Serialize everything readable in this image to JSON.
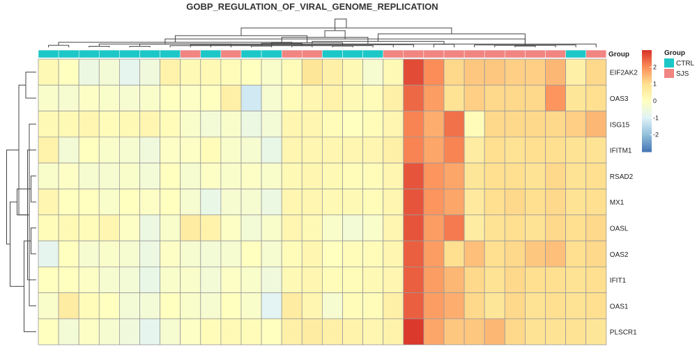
{
  "chart_data": {
    "type": "heatmap",
    "title": "GOBP_REGULATION_OF_VIRAL_GENOME_REPLICATION",
    "annotation_label": "Group",
    "rows": [
      "EIF2AK2",
      "OAS3",
      "ISG15",
      "IFITM1",
      "RSAD2",
      "MX1",
      "OASL",
      "OAS2",
      "IFIT1",
      "OAS1",
      "PLSCR1"
    ],
    "groups": [
      "CTRL",
      "CTRL",
      "CTRL",
      "CTRL",
      "CTRL",
      "CTRL",
      "CTRL",
      "SJS",
      "CTRL",
      "SJS",
      "CTRL",
      "CTRL",
      "SJS",
      "SJS",
      "CTRL",
      "CTRL",
      "CTRL",
      "SJS",
      "SJS",
      "SJS",
      "SJS",
      "SJS",
      "SJS",
      "SJS",
      "SJS",
      "SJS",
      "CTRL",
      "SJS"
    ],
    "values": [
      [
        0.2,
        0.0,
        -0.6,
        -0.4,
        -0.8,
        -0.5,
        0.4,
        0.2,
        0.2,
        0.1,
        0.0,
        -0.2,
        0.1,
        0.8,
        0.5,
        0.2,
        -0.3,
        0.2,
        2.7,
        2.0,
        1.1,
        1.3,
        1.3,
        1.2,
        1.2,
        1.5,
        0.5,
        1.1
      ],
      [
        -0.2,
        -0.3,
        -0.1,
        -0.2,
        -0.3,
        -0.2,
        0.0,
        -0.1,
        0.0,
        0.5,
        -1.2,
        -0.3,
        0.1,
        0.3,
        0.4,
        0.2,
        0.1,
        0.5,
        2.4,
        1.8,
        0.9,
        1.2,
        1.1,
        1.1,
        1.1,
        1.9,
        0.8,
        1.0
      ],
      [
        0.2,
        0.2,
        0.3,
        0.1,
        0.2,
        0.3,
        0.1,
        -0.2,
        -0.4,
        -0.2,
        -0.6,
        -0.4,
        0.3,
        0.3,
        0.1,
        0.0,
        0.1,
        0.3,
        2.1,
        1.6,
        2.3,
        0.1,
        1.1,
        1.1,
        1.1,
        1.1,
        1.2,
        1.5
      ],
      [
        0.4,
        -0.4,
        0.0,
        -0.2,
        -0.3,
        -0.5,
        -0.1,
        -0.1,
        0.1,
        -0.2,
        -0.3,
        -0.7,
        0.3,
        0.3,
        0.3,
        0.3,
        0.3,
        0.5,
        2.1,
        1.7,
        2.1,
        0.6,
        1.0,
        0.9,
        1.0,
        1.0,
        0.9,
        0.9
      ],
      [
        -0.2,
        -0.1,
        -0.3,
        -0.3,
        -0.2,
        -0.4,
        0.0,
        -0.3,
        -0.1,
        -0.2,
        -0.1,
        -0.2,
        0.2,
        0.3,
        0.2,
        0.1,
        0.1,
        0.3,
        2.6,
        1.9,
        1.7,
        0.8,
        1.0,
        1.0,
        0.9,
        1.1,
        0.9,
        1.0
      ],
      [
        0.3,
        0.0,
        0.0,
        -0.2,
        0.0,
        -0.1,
        0.0,
        -0.3,
        -0.7,
        -0.3,
        -0.3,
        -0.6,
        0.3,
        0.3,
        0.2,
        0.2,
        0.1,
        0.3,
        2.6,
        1.9,
        1.7,
        0.7,
        1.0,
        1.1,
        1.0,
        1.1,
        0.9,
        1.0
      ],
      [
        0.1,
        0.2,
        0.1,
        0.3,
        -0.1,
        -0.6,
        -0.2,
        0.6,
        0.4,
        -0.1,
        -0.4,
        -0.2,
        0.3,
        0.2,
        -0.2,
        -0.4,
        -0.2,
        0.3,
        2.6,
        1.8,
        2.2,
        0.6,
        0.9,
        1.0,
        0.9,
        1.1,
        1.0,
        1.1
      ],
      [
        -0.8,
        0.0,
        -0.3,
        -0.2,
        -0.3,
        -0.6,
        -0.1,
        -0.3,
        -0.4,
        -0.3,
        0.0,
        -0.3,
        0.1,
        0.3,
        0.0,
        0.1,
        0.1,
        0.3,
        2.5,
        1.8,
        1.0,
        1.4,
        1.0,
        1.1,
        1.3,
        1.4,
        1.0,
        1.1
      ],
      [
        0.0,
        0.0,
        -0.1,
        -0.3,
        -0.4,
        -0.7,
        -0.2,
        -0.2,
        -0.4,
        -0.1,
        -0.2,
        -0.5,
        0.2,
        0.3,
        0.1,
        0.1,
        0.2,
        0.3,
        2.5,
        1.8,
        1.5,
        1.1,
        0.9,
        1.1,
        1.0,
        1.0,
        0.9,
        1.0
      ],
      [
        -0.2,
        0.6,
        0.1,
        0.0,
        -0.4,
        -0.4,
        0.0,
        -0.2,
        -0.3,
        0.0,
        -0.2,
        -0.9,
        0.6,
        0.3,
        -0.3,
        0.1,
        0.1,
        0.5,
        2.5,
        1.8,
        1.6,
        1.1,
        0.8,
        1.1,
        0.9,
        1.0,
        0.9,
        1.0
      ],
      [
        0.0,
        -0.4,
        -0.1,
        -0.3,
        -0.5,
        -0.8,
        -0.3,
        -0.1,
        0.1,
        0.2,
        0.1,
        0.0,
        0.5,
        0.6,
        0.5,
        0.4,
        0.3,
        0.4,
        2.9,
        1.7,
        1.3,
        1.3,
        1.5,
        1.1,
        0.9,
        0.9,
        0.9,
        0.8
      ]
    ],
    "col_dendrogram": [
      [
        2,
        3,
        0.03
      ],
      [
        4,
        5,
        0.03
      ],
      [
        10,
        11,
        0.04
      ],
      [
        12,
        13,
        0.05
      ],
      [
        14,
        15,
        0.04
      ],
      [
        16,
        6,
        0.05
      ],
      [
        0,
        1,
        0.06
      ],
      [
        17,
        7,
        0.08
      ],
      [
        18,
        8,
        0.08
      ],
      [
        19,
        20,
        0.09
      ],
      [
        23,
        24,
        0.04
      ],
      [
        22,
        25,
        0.06
      ],
      [
        21,
        26,
        0.07
      ],
      [
        28,
        9,
        0.1
      ],
      [
        27,
        29,
        0.1
      ],
      [
        30,
        31,
        0.12
      ],
      [
        32,
        33,
        0.14
      ],
      [
        34,
        35,
        0.15
      ],
      [
        37,
        36,
        0.18
      ],
      [
        38,
        39,
        0.2
      ],
      [
        40,
        41,
        0.25
      ],
      [
        42,
        43,
        0.3
      ],
      [
        44,
        45,
        0.35
      ],
      [
        46,
        47,
        0.4
      ],
      [
        48,
        49,
        0.5
      ],
      [
        50,
        51,
        0.58
      ],
      [
        52,
        53,
        0.85
      ]
    ],
    "row_dendrogram": [
      [
        6,
        7,
        0.15
      ],
      [
        4,
        5,
        0.15
      ],
      [
        3,
        8,
        0.25
      ],
      [
        2,
        9,
        0.2
      ],
      [
        0,
        1,
        0.3
      ],
      [
        10,
        11,
        0.35
      ],
      [
        12,
        13,
        0.55
      ],
      [
        14,
        15,
        0.5
      ],
      [
        16,
        17,
        0.75
      ],
      [
        18,
        19,
        0.85
      ]
    ],
    "color_scale": {
      "ticks": [
        -2,
        -1,
        0,
        1,
        2
      ],
      "range": [
        -3,
        3
      ],
      "colors": [
        "#4575b4",
        "#91bfdb",
        "#e0f3f8",
        "#ffffbf",
        "#fee090",
        "#fc8d59",
        "#d73027"
      ]
    },
    "group_colors": {
      "CTRL": "#1dc7c7",
      "SJS": "#f08582"
    },
    "legend": {
      "title": "Group",
      "items": [
        "CTRL",
        "SJS"
      ]
    }
  }
}
